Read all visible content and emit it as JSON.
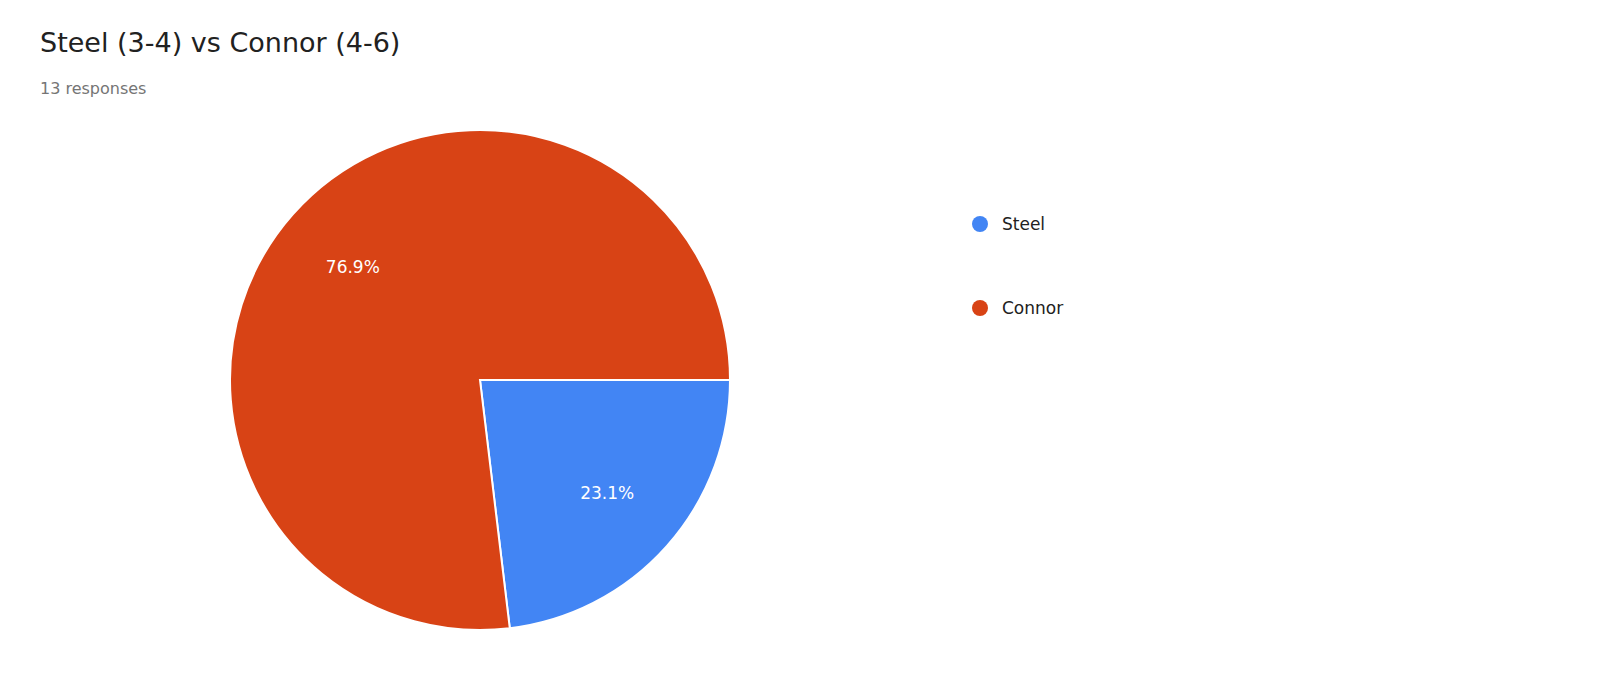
{
  "chart_data": {
    "type": "pie",
    "title": "Steel (3-4) vs Connor (4-6)",
    "subtitle": "13 responses",
    "categories": [
      "Steel",
      "Connor"
    ],
    "values": [
      23.1,
      76.9
    ],
    "value_labels": [
      "23.1%",
      "76.9%"
    ],
    "colors": [
      "#4285F4",
      "#D84315"
    ],
    "data_labels": true,
    "legend": "right"
  }
}
